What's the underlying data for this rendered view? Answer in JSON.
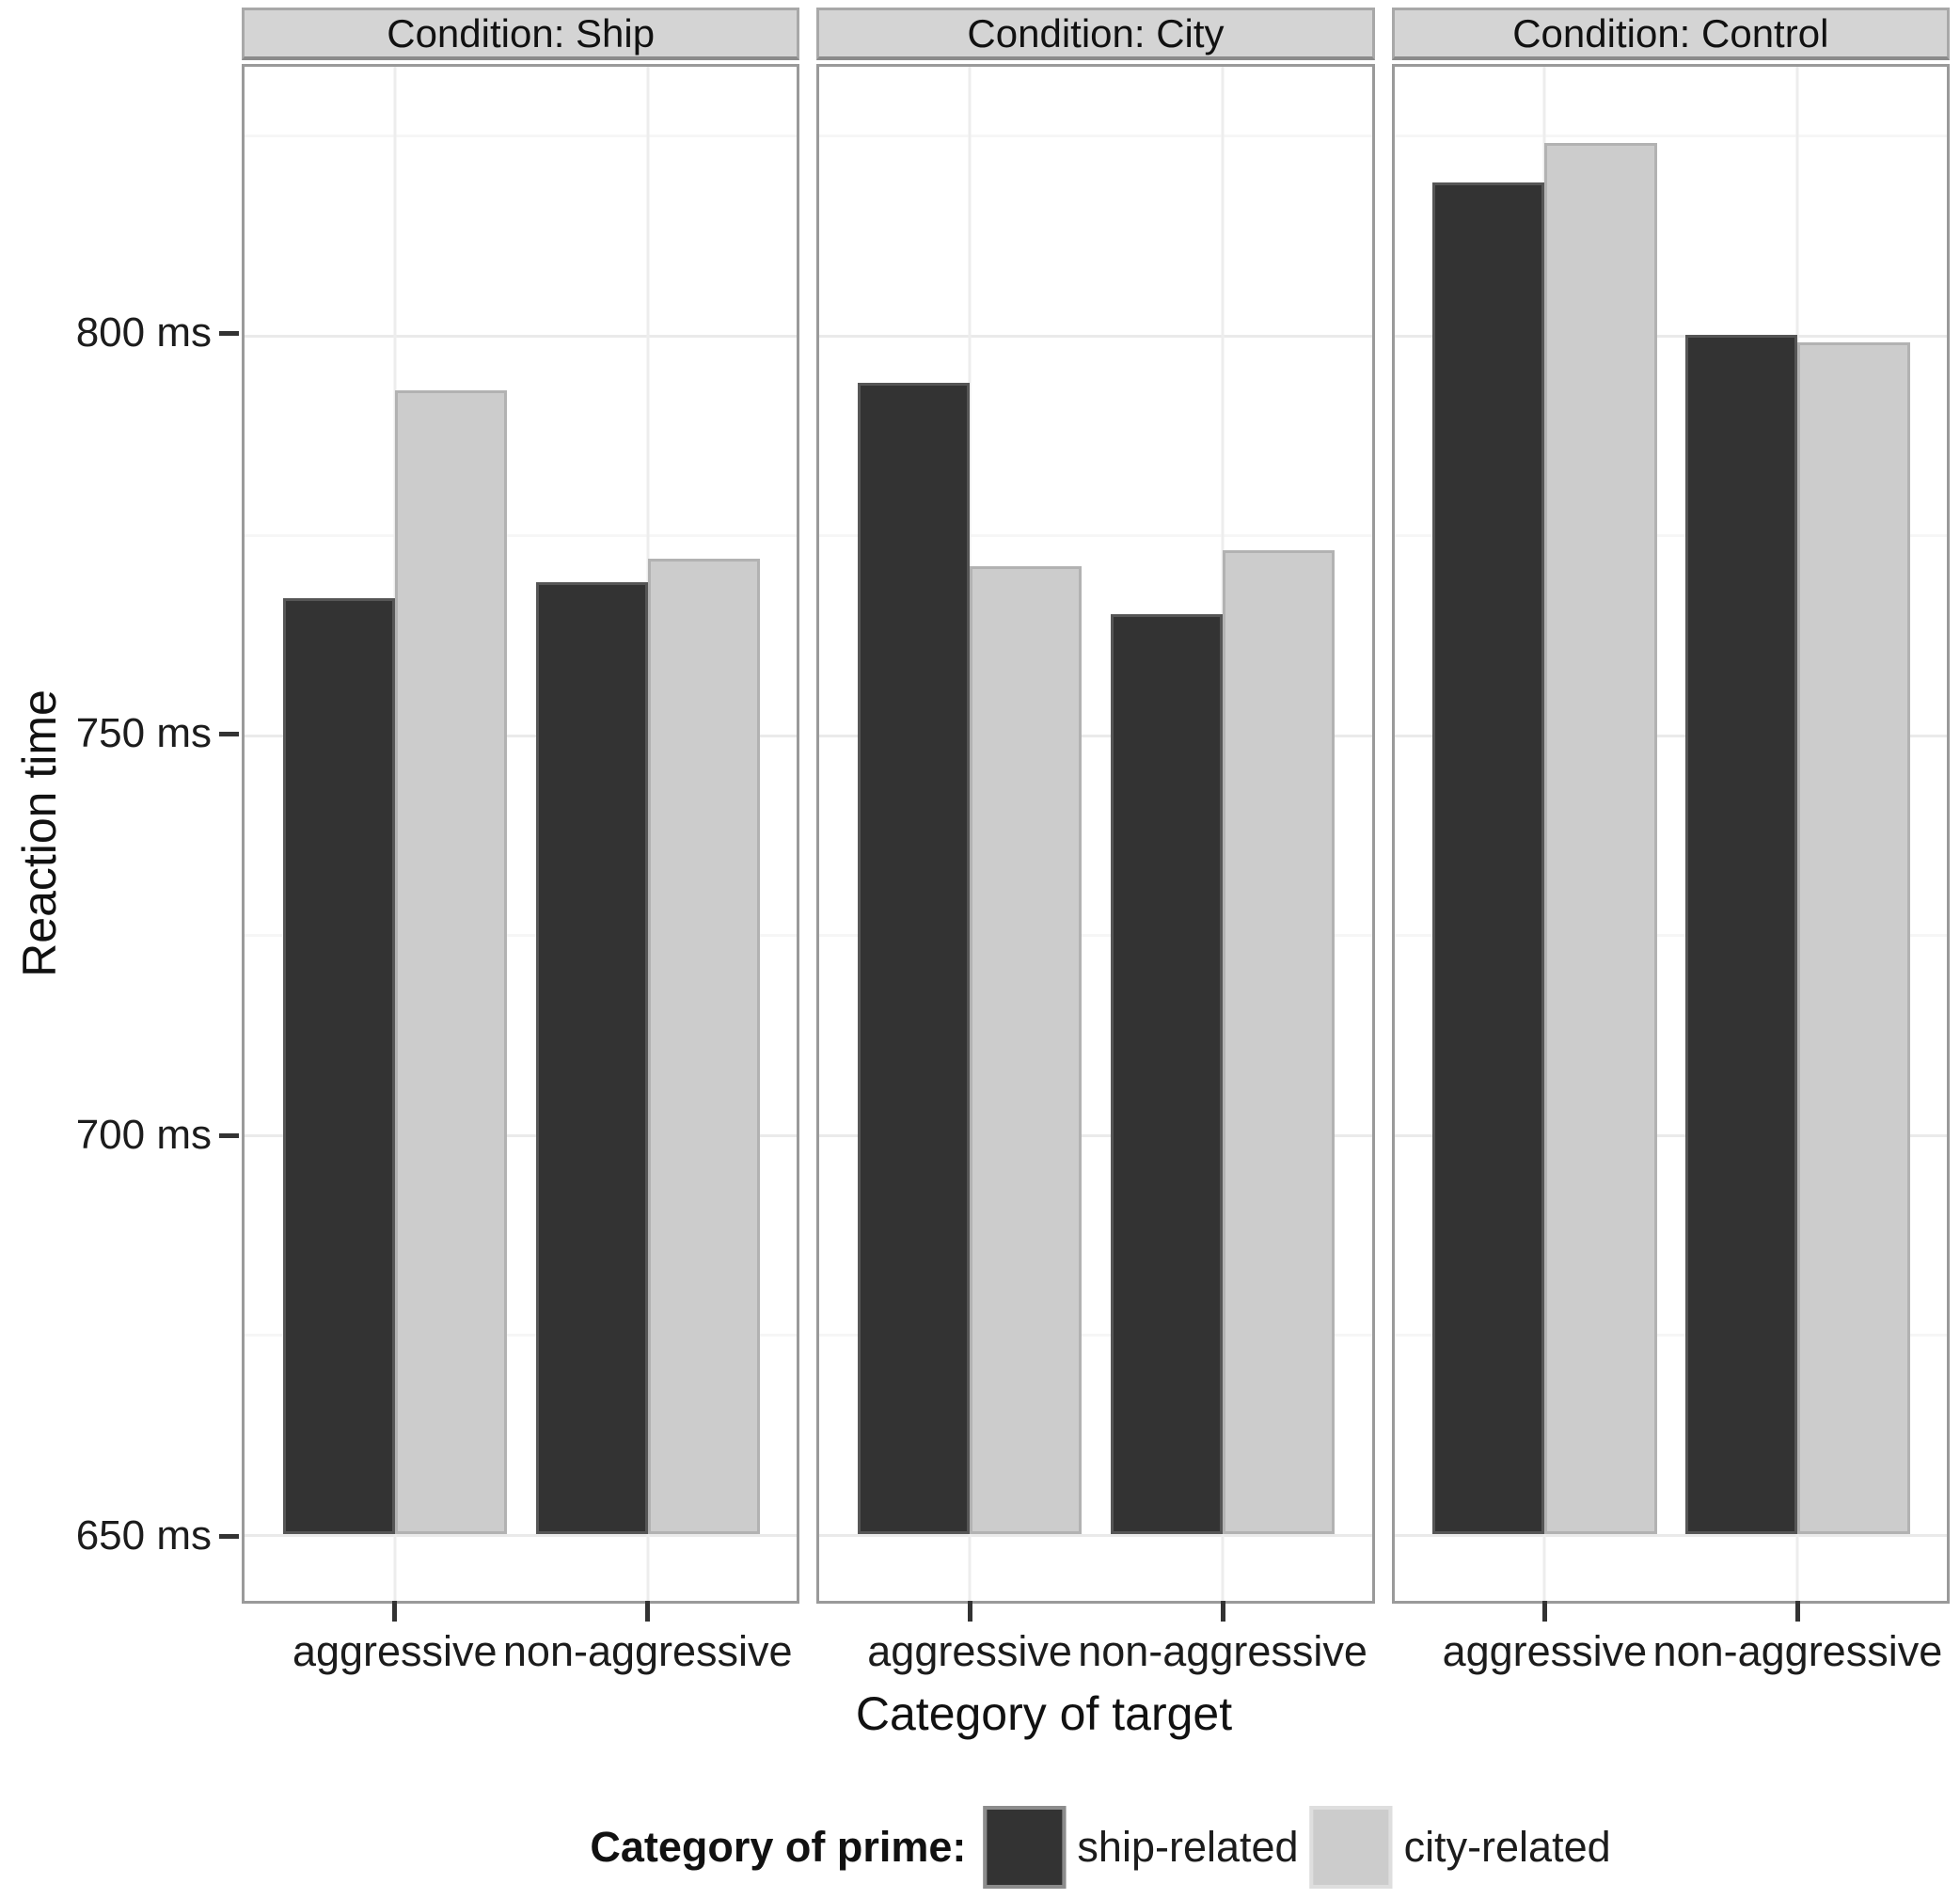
{
  "chart_data": {
    "type": "bar",
    "ylabel": "Reaction time",
    "xlabel": "Category of target",
    "unit": "ms",
    "categories": [
      "aggressive",
      "non-aggressive"
    ],
    "series": [
      {
        "name": "ship-related",
        "color": "#333333"
      },
      {
        "name": "city-related",
        "color": "#cccccc"
      }
    ],
    "facets": [
      {
        "id": "ship",
        "label": "Condition: Ship",
        "series": [
          {
            "name": "ship-related",
            "values": [
              767,
              769
            ]
          },
          {
            "name": "city-related",
            "values": [
              793,
              772
            ]
          }
        ]
      },
      {
        "id": "city",
        "label": "Condition: City",
        "series": [
          {
            "name": "ship-related",
            "values": [
              794,
              765
            ]
          },
          {
            "name": "city-related",
            "values": [
              771,
              773
            ]
          }
        ]
      },
      {
        "id": "control",
        "label": "Condition: Control",
        "series": [
          {
            "name": "ship-related",
            "values": [
              819,
              800
            ]
          },
          {
            "name": "city-related",
            "values": [
              824,
              799
            ]
          }
        ]
      }
    ],
    "yticks": [
      {
        "value": 800,
        "label": "800 ms"
      },
      {
        "value": 750,
        "label": "750 ms"
      },
      {
        "value": 700,
        "label": "700 ms"
      },
      {
        "value": 650,
        "label": "650 ms"
      }
    ],
    "minor_gridlines": [
      825,
      775,
      725,
      675
    ],
    "ylim": [
      641.6,
      833.5
    ],
    "bar_base": 650,
    "legend": {
      "title": "Category of prime:",
      "items": [
        "ship-related",
        "city-related"
      ]
    },
    "colors": {
      "dark_bar": "#333333",
      "light_bar": "#cccccc",
      "strip_bg": "#d4d4d4",
      "panel_border": "#9a9a9a",
      "grid_major": "#eaeaea",
      "grid_minor": "#f6f6f6"
    },
    "legend_position": "bottom",
    "grid": true
  }
}
